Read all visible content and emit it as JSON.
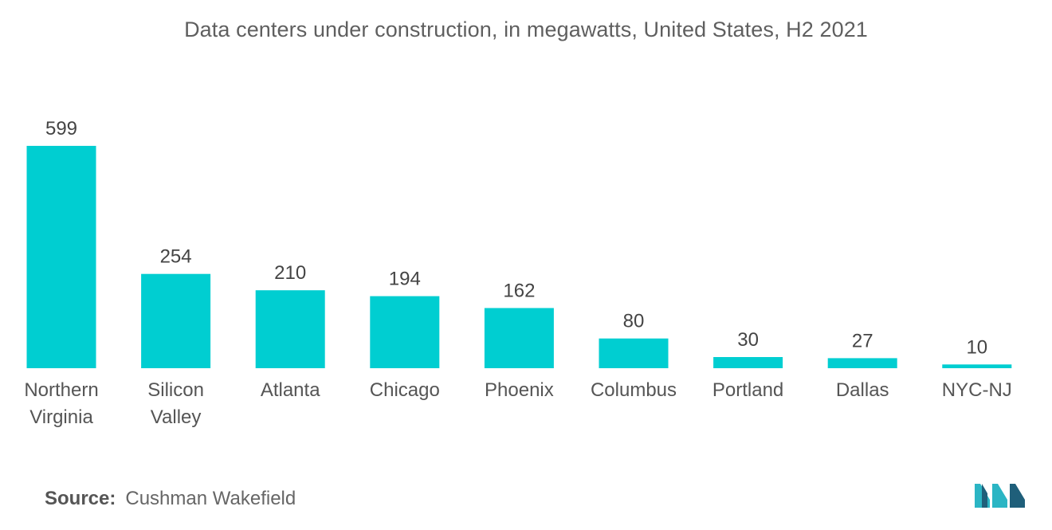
{
  "chart_data": {
    "type": "bar",
    "title": "Data centers under construction, in megawatts, United States, H2 2021",
    "categories": [
      "Northern Virginia",
      "Silicon Valley",
      "Atlanta",
      "Chicago",
      "Phoenix",
      "Columbus",
      "Portland",
      "Dallas",
      "NYC-NJ"
    ],
    "category_lines": [
      [
        "Northern",
        "Virginia"
      ],
      [
        "Silicon",
        "Valley"
      ],
      [
        "Atlanta"
      ],
      [
        "Chicago"
      ],
      [
        "Phoenix"
      ],
      [
        "Columbus"
      ],
      [
        "Portland"
      ],
      [
        "Dallas"
      ],
      [
        "NYC-NJ"
      ]
    ],
    "values": [
      599,
      254,
      210,
      194,
      162,
      80,
      30,
      27,
      10
    ],
    "data_labels": [
      "599",
      "254",
      "210",
      "194",
      "162",
      "80",
      "30",
      "27",
      "10"
    ],
    "bar_color": "#00ced1",
    "xlabel": "",
    "ylabel": "",
    "ylim": [
      0,
      599
    ],
    "grid": false,
    "legend": "none"
  },
  "source": {
    "label": "Source:",
    "text": "Cushman Wakefield"
  },
  "colors": {
    "title": "#5f5f5f",
    "text": "#555555",
    "logo_dark": "#1f5f7a",
    "logo_light": "#2bb5c4"
  },
  "logo": {
    "icon": "mordor-intelligence-logo-icon"
  }
}
